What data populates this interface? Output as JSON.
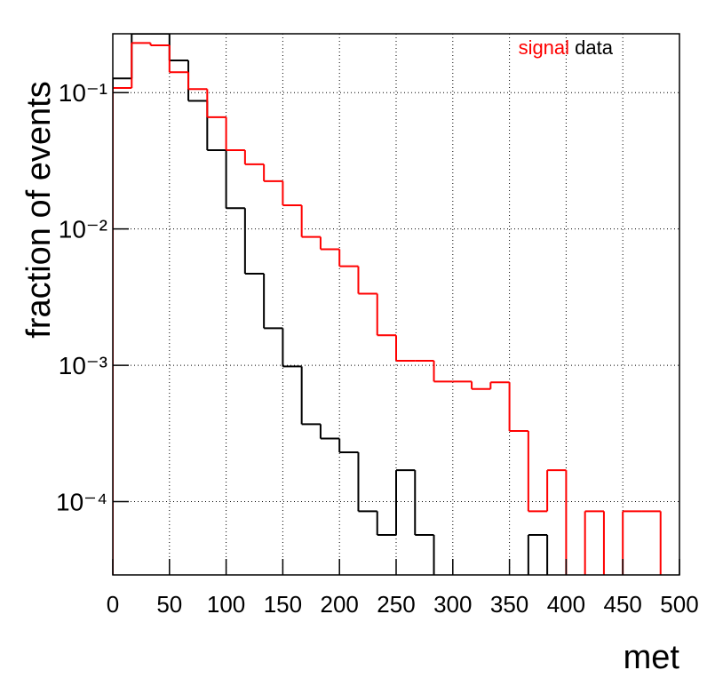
{
  "chart_data": {
    "type": "histogram",
    "xlabel": "met",
    "ylabel": "fraction of events",
    "bins": [
      0,
      16.667,
      33.333,
      50,
      66.667,
      83.333,
      100,
      116.667,
      133.333,
      150,
      166.667,
      183.333,
      200,
      216.667,
      233.333,
      250,
      266.667,
      283.333,
      300,
      316.667,
      333.333,
      350,
      366.667,
      383.333,
      400,
      416.667,
      433.333,
      450,
      466.667,
      483.333,
      500
    ],
    "series": [
      {
        "name": "signal",
        "color": "#ff0000",
        "values": [
          0.108,
          0.231,
          0.222,
          0.141,
          0.106,
          0.066,
          0.0378,
          0.0298,
          0.0224,
          0.0149,
          0.00874,
          0.0071,
          0.00532,
          0.00335,
          0.00166,
          0.00108,
          0.00108,
          0.00076,
          0.00076,
          0.00067,
          0.00075,
          0.00033,
          8.5e-05,
          0.00017,
          0,
          8.5e-05,
          0,
          8.5e-05,
          8.5e-05,
          0
        ]
      },
      {
        "name": "data",
        "color": "#000000",
        "values": [
          0.127,
          0.27,
          0.27,
          0.172,
          0.087,
          0.0378,
          0.0142,
          0.0047,
          0.00187,
          0.00098,
          0.00037,
          0.00029,
          0.00023,
          8.5e-05,
          5.7e-05,
          0.00017,
          5.7e-05,
          0,
          0,
          0,
          0,
          0,
          5.7e-05,
          0,
          0,
          0,
          0,
          0,
          0,
          0
        ]
      }
    ],
    "xlim": [
      0,
      500
    ],
    "ylim": [
      2.9e-05,
      0.27
    ],
    "log_y": true,
    "grid": true,
    "legend": "top-right",
    "xticks": [
      0,
      50,
      100,
      150,
      200,
      250,
      300,
      350,
      400,
      450,
      500
    ],
    "yticks": [
      {
        "value": 0.0001,
        "label": "10⁻⁴"
      },
      {
        "value": 0.001,
        "label": "10⁻³"
      },
      {
        "value": 0.01,
        "label": "10⁻²"
      },
      {
        "value": 0.1,
        "label": "10⁻¹"
      }
    ]
  }
}
